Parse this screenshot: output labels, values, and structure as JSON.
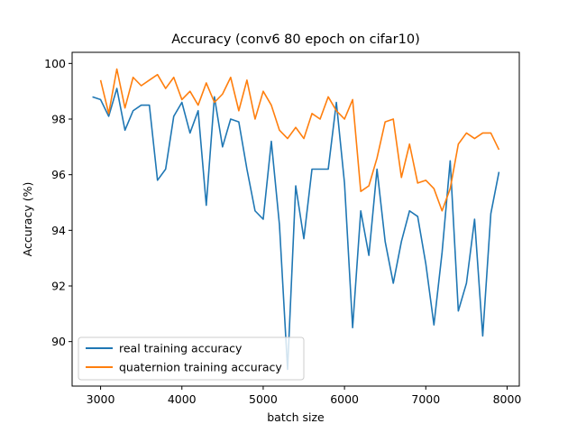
{
  "chart_data": {
    "type": "line",
    "title": "Accuracy (conv6 80 epoch on cifar10)",
    "xlabel": "batch size",
    "ylabel": "Accuracy (%)",
    "xlim": [
      2650,
      8150
    ],
    "ylim": [
      88.4,
      100.4
    ],
    "xticks": [
      3000,
      4000,
      5000,
      6000,
      7000,
      8000
    ],
    "yticks": [
      90,
      92,
      94,
      96,
      98,
      100
    ],
    "grid": false,
    "legend_position": "lower-left",
    "series": [
      {
        "name": "real training accuracy",
        "color": "#1f77b4",
        "x": [
          2900,
          3000,
          3100,
          3200,
          3300,
          3400,
          3500,
          3600,
          3700,
          3800,
          3900,
          4000,
          4100,
          4200,
          4300,
          4400,
          4500,
          4600,
          4700,
          4800,
          4900,
          5000,
          5100,
          5200,
          5300,
          5400,
          5500,
          5600,
          5700,
          5800,
          5900,
          6000,
          6100,
          6200,
          6300,
          6400,
          6500,
          6600,
          6700,
          6800,
          6900,
          7000,
          7100,
          7200,
          7300,
          7400,
          7500,
          7600,
          7700,
          7800,
          7900
        ],
        "y": [
          98.8,
          98.7,
          98.1,
          99.1,
          97.6,
          98.3,
          98.5,
          98.5,
          95.8,
          96.2,
          98.1,
          98.6,
          97.5,
          98.3,
          94.9,
          98.8,
          97.0,
          98.0,
          97.9,
          96.2,
          94.7,
          94.4,
          97.2,
          94.2,
          89.0,
          95.6,
          93.7,
          96.2,
          96.2,
          96.2,
          98.6,
          95.7,
          90.5,
          94.7,
          93.1,
          96.2,
          93.6,
          92.1,
          93.6,
          94.7,
          94.5,
          92.8,
          90.6,
          93.2,
          96.5,
          91.1,
          92.1,
          94.4,
          90.2,
          94.6,
          96.1
        ]
      },
      {
        "name": "quaternion training accuracy",
        "color": "#ff7f0e",
        "x": [
          3000,
          3100,
          3200,
          3300,
          3400,
          3500,
          3600,
          3700,
          3800,
          3900,
          4000,
          4100,
          4200,
          4300,
          4400,
          4500,
          4600,
          4700,
          4800,
          4900,
          5000,
          5100,
          5200,
          5300,
          5400,
          5500,
          5600,
          5700,
          5800,
          5900,
          6000,
          6100,
          6200,
          6300,
          6400,
          6500,
          6600,
          6700,
          6800,
          6900,
          7000,
          7100,
          7200,
          7300,
          7400,
          7500,
          7600,
          7700,
          7800,
          7900
        ],
        "y": [
          99.4,
          98.2,
          99.8,
          98.4,
          99.5,
          99.2,
          99.4,
          99.6,
          99.1,
          99.5,
          98.7,
          99.0,
          98.5,
          99.3,
          98.6,
          98.9,
          99.5,
          98.3,
          99.4,
          98.0,
          99.0,
          98.5,
          97.6,
          97.3,
          97.7,
          97.3,
          98.2,
          98.0,
          98.8,
          98.3,
          98.0,
          98.7,
          95.4,
          95.6,
          96.6,
          97.9,
          98.0,
          95.9,
          97.1,
          95.7,
          95.8,
          95.5,
          94.7,
          95.5,
          97.1,
          97.5,
          97.3,
          97.5,
          97.5,
          96.9
        ]
      }
    ]
  }
}
